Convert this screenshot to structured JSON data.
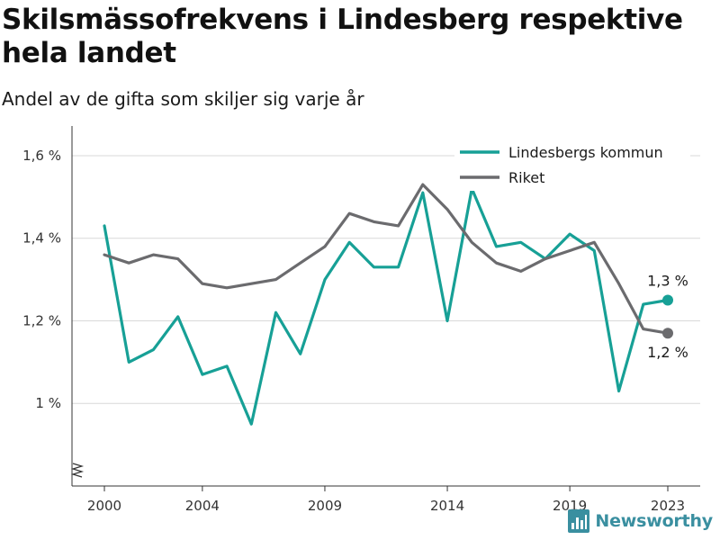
{
  "header": {
    "title": "Skilsmässofrekvens i Lindesberg respektive hela landet",
    "subtitle": "Andel av de gifta som skiljer sig varje år"
  },
  "brand": {
    "logo_text": "Newsworthy",
    "icon": "newsworthy-bar-chart-icon"
  },
  "chart_data": {
    "type": "line",
    "title": "Skilsmässofrekvens i Lindesberg respektive hela landet",
    "subtitle": "Andel av de gifta som skiljer sig varje år",
    "xlabel": "",
    "ylabel": "",
    "x": [
      2000,
      2001,
      2002,
      2003,
      2004,
      2005,
      2006,
      2007,
      2008,
      2009,
      2010,
      2011,
      2012,
      2013,
      2014,
      2015,
      2016,
      2017,
      2018,
      2019,
      2020,
      2021,
      2022,
      2023
    ],
    "x_ticks": [
      2000,
      2004,
      2009,
      2014,
      2019,
      2023
    ],
    "x_tick_labels": [
      "2000",
      "2004",
      "2009",
      "2014",
      "2019",
      "2023"
    ],
    "y_ticks": [
      1.0,
      1.2,
      1.4,
      1.6
    ],
    "y_tick_labels": [
      "1 %",
      "1,2 %",
      "1,4 %",
      "1,6 %"
    ],
    "ylim": [
      0.8,
      1.65
    ],
    "y_axis_break": true,
    "grid": true,
    "legend_position": "top-right",
    "series": [
      {
        "name": "Lindesbergs kommun",
        "color": "#17a096",
        "values": [
          1.43,
          1.1,
          1.13,
          1.21,
          1.07,
          1.09,
          0.95,
          1.22,
          1.12,
          1.3,
          1.39,
          1.33,
          1.33,
          1.51,
          1.2,
          1.52,
          1.38,
          1.39,
          1.35,
          1.41,
          1.37,
          1.03,
          1.24,
          1.25
        ],
        "end_label": "1,3 %"
      },
      {
        "name": "Riket",
        "color": "#6b6b6e",
        "values": [
          1.36,
          1.34,
          1.36,
          1.35,
          1.29,
          1.28,
          1.29,
          1.3,
          1.34,
          1.38,
          1.46,
          1.44,
          1.43,
          1.53,
          1.47,
          1.39,
          1.34,
          1.32,
          1.35,
          1.37,
          1.39,
          1.29,
          1.18,
          1.17
        ],
        "end_label": "1,2 %"
      }
    ]
  }
}
